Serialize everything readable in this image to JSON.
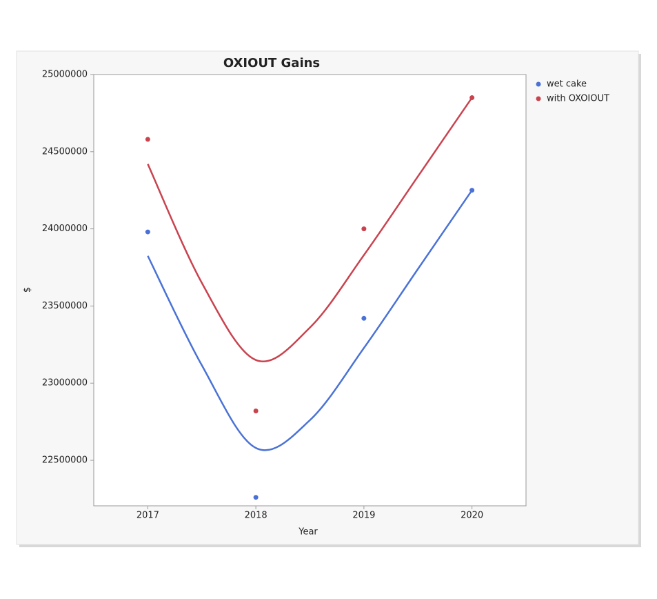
{
  "chart_data": {
    "type": "scatter",
    "title": "OXIOUT Gains",
    "x_label": "Year",
    "y_label": "$",
    "x": [
      2017,
      2018,
      2019,
      2020
    ],
    "fit_x": [
      2017,
      2017.5,
      2018,
      2018.5,
      2019,
      2019.5,
      2020
    ],
    "series": [
      {
        "name": "wet cake",
        "color": "#4a72d6",
        "values": [
          23980000,
          22260000,
          23420000,
          24250000
        ],
        "fit": [
          23825000,
          23116000,
          22580000,
          22760000,
          23228000,
          23740000,
          24250000
        ]
      },
      {
        "name": "with OXOIOUT",
        "color": "#c9434f",
        "values": [
          24580000,
          22820000,
          24000000,
          24850000
        ],
        "fit": [
          24420000,
          23650000,
          23150000,
          23360000,
          23830000,
          24340000,
          24850000
        ]
      }
    ],
    "xlim": [
      2016.5,
      2020.5
    ],
    "xticks": [
      2017,
      2018,
      2019,
      2020
    ],
    "ylim": [
      22205000,
      25000000
    ],
    "yticks": [
      22500000,
      23000000,
      23500000,
      24000000,
      24500000,
      25000000
    ],
    "legend": "right",
    "grid": false
  }
}
